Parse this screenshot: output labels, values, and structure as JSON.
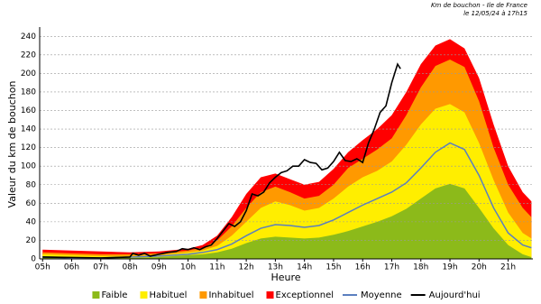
{
  "chart_data": {
    "type": "area",
    "title": "Km de bouchon - Ile de France",
    "subtitle": "le 12/05/24 à 17h15",
    "x_label": "Heure",
    "y_label": "Valeur du  km de bouchon",
    "xlim": [
      4.9,
      21.85
    ],
    "ylim": [
      0,
      250
    ],
    "xticks": [
      {
        "value": 5,
        "label": "05h"
      },
      {
        "value": 6,
        "label": "06h"
      },
      {
        "value": 7,
        "label": "07h"
      },
      {
        "value": 8,
        "label": "08h"
      },
      {
        "value": 9,
        "label": "09h"
      },
      {
        "value": 10,
        "label": "10h"
      },
      {
        "value": 11,
        "label": "11h"
      },
      {
        "value": 12,
        "label": "12h"
      },
      {
        "value": 13,
        "label": "13h"
      },
      {
        "value": 14,
        "label": "14h"
      },
      {
        "value": 15,
        "label": "15h"
      },
      {
        "value": 16,
        "label": "16h"
      },
      {
        "value": 17,
        "label": "17h"
      },
      {
        "value": 18,
        "label": "18h"
      },
      {
        "value": 19,
        "label": "19h"
      },
      {
        "value": 20,
        "label": "20h"
      },
      {
        "value": 21,
        "label": "21h"
      }
    ],
    "yticks": [
      0,
      20,
      40,
      60,
      80,
      100,
      120,
      140,
      160,
      180,
      200,
      220,
      240
    ],
    "grid": true,
    "x": [
      5,
      6,
      7,
      8,
      9,
      10,
      10.5,
      11,
      11.5,
      12,
      12.5,
      13,
      13.5,
      14,
      14.5,
      15,
      15.5,
      16,
      16.5,
      17,
      17.5,
      18,
      18.5,
      19,
      19.5,
      20,
      20.5,
      21,
      21.5,
      21.8
    ],
    "series": [
      {
        "name": "Faible",
        "color": "#8cba1a",
        "kind": "area",
        "values": [
          3,
          2,
          1,
          1,
          2,
          4,
          5,
          7,
          11,
          17,
          22,
          24,
          23,
          22,
          23,
          26,
          30,
          35,
          40,
          46,
          54,
          65,
          76,
          81,
          76,
          55,
          33,
          15,
          5,
          2
        ]
      },
      {
        "name": "Habituel",
        "color": "#ffee00",
        "kind": "area",
        "values": [
          5,
          4,
          3,
          3,
          4,
          7,
          9,
          14,
          25,
          40,
          55,
          62,
          58,
          52,
          55,
          65,
          78,
          88,
          95,
          105,
          123,
          145,
          162,
          167,
          158,
          125,
          85,
          50,
          28,
          22
        ]
      },
      {
        "name": "Inhabituel",
        "color": "#ff9900",
        "kind": "area",
        "values": [
          7,
          6,
          5,
          5,
          6,
          9,
          12,
          20,
          35,
          55,
          72,
          78,
          72,
          65,
          68,
          80,
          98,
          108,
          118,
          130,
          155,
          185,
          208,
          215,
          207,
          170,
          120,
          80,
          55,
          45
        ]
      },
      {
        "name": "Exceptionnel",
        "color": "#ff0000",
        "kind": "area",
        "values": [
          10,
          9,
          8,
          7,
          8,
          11,
          15,
          25,
          45,
          70,
          88,
          92,
          86,
          80,
          83,
          97,
          115,
          128,
          140,
          155,
          180,
          210,
          230,
          237,
          227,
          195,
          145,
          100,
          72,
          62
        ]
      },
      {
        "name": "Moyenne",
        "color": "#5b7fbf",
        "kind": "line",
        "values": [
          2,
          1,
          1,
          2,
          3,
          5,
          7,
          10,
          16,
          25,
          33,
          37,
          36,
          34,
          36,
          42,
          50,
          58,
          65,
          72,
          82,
          98,
          115,
          125,
          118,
          90,
          55,
          28,
          15,
          12
        ]
      },
      {
        "name": "Aujourd'hui",
        "color": "#000000",
        "kind": "line",
        "x": [
          5,
          7,
          8,
          8.1,
          8.3,
          8.5,
          8.7,
          9,
          9.3,
          9.6,
          9.8,
          10,
          10.2,
          10.4,
          10.6,
          10.8,
          11,
          11.2,
          11.4,
          11.6,
          11.8,
          12,
          12.2,
          12.4,
          12.6,
          12.8,
          13,
          13.2,
          13.4,
          13.6,
          13.8,
          14,
          14.2,
          14.4,
          14.6,
          14.8,
          15,
          15.2,
          15.4,
          15.6,
          15.8,
          16,
          16.2,
          16.4,
          16.6,
          16.8,
          17,
          17.1,
          17.2,
          17.3
        ],
        "values": [
          2,
          1,
          2,
          6,
          4,
          6,
          3,
          5,
          7,
          8,
          11,
          10,
          12,
          10,
          13,
          15,
          22,
          30,
          38,
          35,
          40,
          52,
          70,
          68,
          72,
          82,
          88,
          93,
          95,
          100,
          100,
          107,
          104,
          103,
          96,
          98,
          105,
          115,
          106,
          105,
          108,
          104,
          125,
          140,
          158,
          165,
          190,
          200,
          210,
          205
        ]
      }
    ]
  }
}
